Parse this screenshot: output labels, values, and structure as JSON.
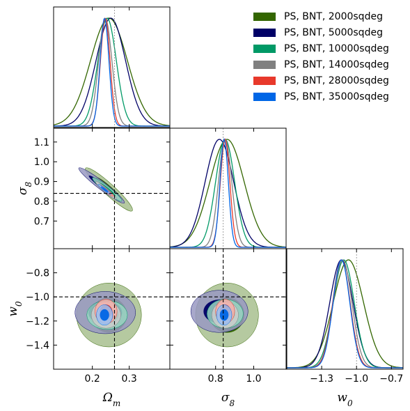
{
  "chart_data": {
    "type": "corner",
    "parameters": [
      {
        "key": "om",
        "label": "Ω",
        "sub": "m",
        "fiducial": 0.26,
        "range": [
          0.095,
          0.41
        ],
        "ticks": [
          0.2,
          0.3
        ],
        "tick_labels": [
          "0.2",
          "0.3"
        ]
      },
      {
        "key": "s8",
        "label": "σ",
        "sub": "8",
        "fiducial": 0.84,
        "range": [
          0.56,
          1.17
        ],
        "ticks": [
          0.8,
          1.0
        ],
        "tick_labels": [
          "0.8",
          "1.0"
        ],
        "ticks_left": [
          0.7,
          0.8,
          0.9,
          1.0,
          1.1
        ],
        "tick_labels_left": [
          "0.7",
          "0.8",
          "0.9",
          "1.0",
          "1.1"
        ]
      },
      {
        "key": "w0",
        "label": "w",
        "sub": "0",
        "fiducial": -1.0,
        "range": [
          -1.6,
          -0.6
        ],
        "ticks": [
          -1.3,
          -1.0,
          -0.7
        ],
        "tick_labels": [
          "−1.3",
          "−1.0",
          "−0.7"
        ],
        "ticks_left": [
          -1.4,
          -1.2,
          -1.0,
          -0.8
        ],
        "tick_labels_left": [
          "−1.4",
          "−1.2",
          "−1.0",
          "−0.8"
        ]
      }
    ],
    "series": [
      {
        "name": "PS, BNT, 2000sqdeg",
        "color": "#336600",
        "fill_outer": "#a8bf8f",
        "fill_inner": "#336600",
        "marg": {
          "om": [
            0.245,
            0.05
          ],
          "s8": [
            0.86,
            0.09
          ],
          "w0": [
            -1.07,
            0.13
          ]
        },
        "ellipse": {
          "om_s8": [
            0.245,
            0.86,
            0.064,
            0.11,
            -0.94
          ],
          "om_w0": [
            0.245,
            -1.15,
            0.088,
            0.265,
            0.0
          ],
          "s8_w0": [
            0.86,
            -1.15,
            0.165,
            0.265,
            0.0
          ]
        }
      },
      {
        "name": "PS, BNT, 5000sqdeg",
        "color": "#000066",
        "fill_outer": "#9999c2",
        "fill_inner": "#000066",
        "marg": {
          "om": [
            0.25,
            0.04
          ],
          "s8": [
            0.82,
            0.075
          ],
          "w0": [
            -1.13,
            0.1
          ]
        },
        "ellipse": {
          "om_s8": [
            0.225,
            0.88,
            0.062,
            0.09,
            -0.96
          ],
          "om_w0": [
            0.235,
            -1.13,
            0.082,
            0.175,
            0.0
          ],
          "s8_w0": [
            0.82,
            -1.12,
            0.15,
            0.175,
            0.0
          ]
        }
      },
      {
        "name": "PS, BNT, 10000sqdeg",
        "color": "#009966",
        "fill_outer": "#99d6c2",
        "fill_inner": "#009966",
        "marg": {
          "om": [
            0.24,
            0.025
          ],
          "s8": [
            0.85,
            0.05
          ],
          "w0": [
            -1.11,
            0.09
          ]
        },
        "ellipse": {
          "om_s8": [
            0.24,
            0.86,
            0.04,
            0.06,
            -0.95
          ],
          "om_w0": [
            0.24,
            -1.15,
            0.055,
            0.12,
            0.0
          ],
          "s8_w0": [
            0.85,
            -1.14,
            0.095,
            0.12,
            0.0
          ]
        }
      },
      {
        "name": "PS, BNT, 14000sqdeg",
        "color": "#808080",
        "fill_outer": "#cccccc",
        "fill_inner": "#808080",
        "marg": {
          "om": [
            0.235,
            0.018
          ],
          "s8": [
            0.85,
            0.035
          ],
          "w0": [
            -1.12,
            0.08
          ]
        },
        "ellipse": {
          "om_s8": [
            0.237,
            0.855,
            0.028,
            0.045,
            -0.95
          ],
          "om_w0": [
            0.237,
            -1.15,
            0.04,
            0.11,
            0.0
          ],
          "s8_w0": [
            0.85,
            -1.15,
            0.07,
            0.11,
            0.0
          ]
        }
      },
      {
        "name": "PS, BNT, 28000sqdeg",
        "color": "#e8392b",
        "fill_outer": "#f5b0aa",
        "fill_inner": "#e8392b",
        "marg": {
          "om": [
            0.235,
            0.013
          ],
          "s8": [
            0.85,
            0.025
          ],
          "w0": [
            -1.13,
            0.075
          ]
        },
        "ellipse": {
          "om_s8": [
            0.237,
            0.855,
            0.02,
            0.03,
            -0.95
          ],
          "om_w0": [
            0.237,
            -1.12,
            0.03,
            0.1,
            0.0
          ],
          "s8_w0": [
            0.85,
            -1.12,
            0.05,
            0.1,
            0.0
          ]
        }
      },
      {
        "name": "PS, BNT, 35000sqdeg",
        "color": "#0066e6",
        "fill_outer": "#99c2f5",
        "fill_inner": "#0066e6",
        "marg": {
          "om": [
            0.233,
            0.012
          ],
          "s8": [
            0.845,
            0.022
          ],
          "w0": [
            -1.13,
            0.072
          ]
        },
        "ellipse": {
          "om_s8": [
            0.233,
            0.86,
            0.018,
            0.026,
            -0.95
          ],
          "om_w0": [
            0.233,
            -1.15,
            0.022,
            0.085,
            0.0
          ],
          "s8_w0": [
            0.845,
            -1.15,
            0.04,
            0.085,
            0.0
          ]
        }
      }
    ],
    "legend_position": "top-right"
  }
}
